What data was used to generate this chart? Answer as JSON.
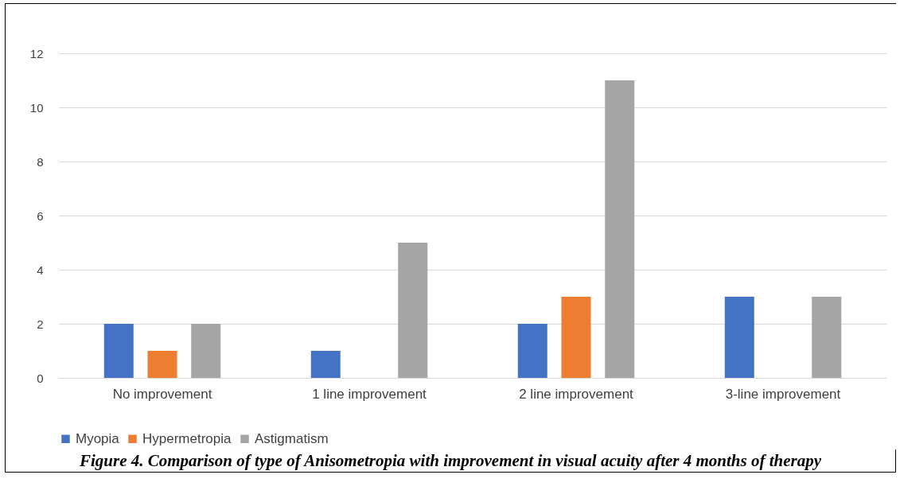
{
  "chart_data": {
    "type": "bar",
    "categories": [
      "No improvement",
      "1 line improvement",
      "2 line improvement",
      "3-line improvement"
    ],
    "series": [
      {
        "name": "Myopia",
        "color": "#4472c4",
        "values": [
          2,
          1,
          2,
          3
        ]
      },
      {
        "name": "Hypermetropia",
        "color": "#ed7d31",
        "values": [
          1,
          0,
          3,
          0
        ]
      },
      {
        "name": "Astigmatism",
        "color": "#a5a5a5",
        "values": [
          2,
          5,
          11,
          3
        ]
      }
    ],
    "ylim": [
      0,
      12
    ],
    "yticks": [
      0,
      2,
      4,
      6,
      8,
      10,
      12
    ],
    "grid": "y",
    "legend": "bottom",
    "annotations": [
      "Figure 4. Comparison of type of Anisometropia with improvement in visual acuity after 4 months of therapy"
    ]
  }
}
